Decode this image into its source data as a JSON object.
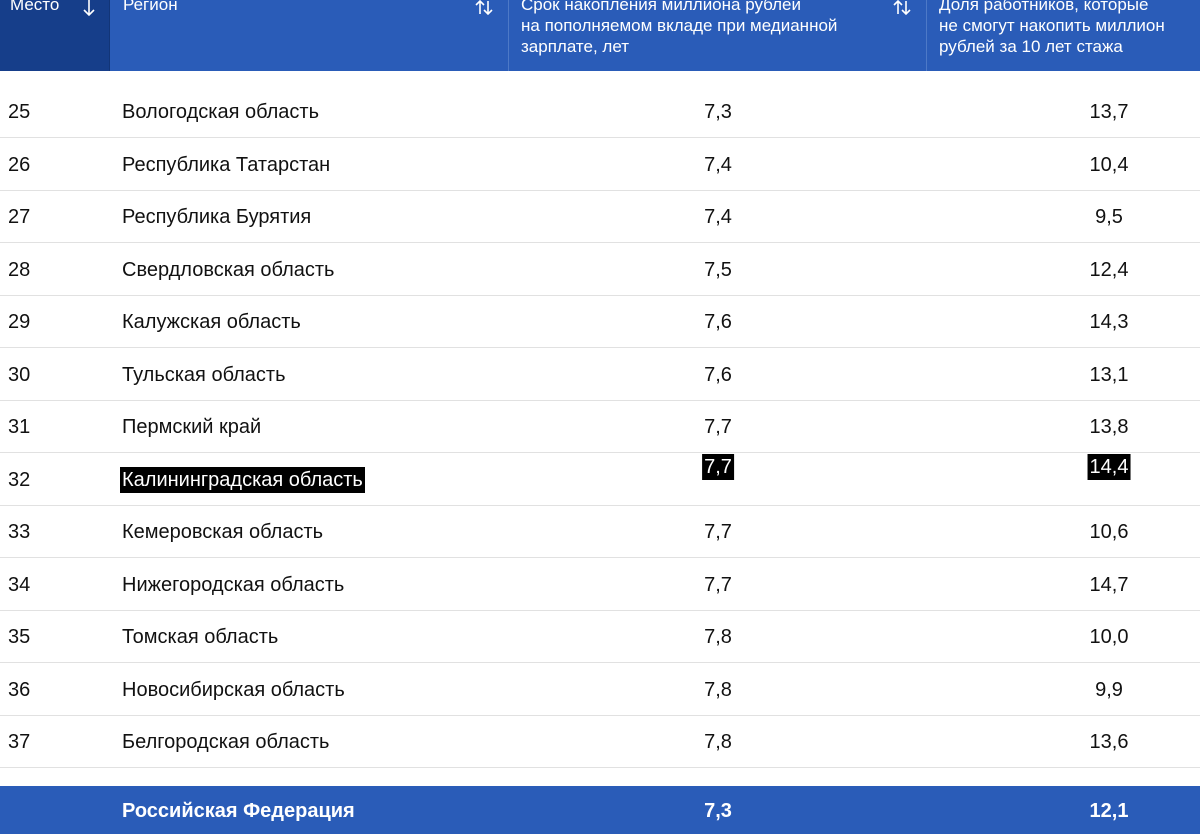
{
  "table": {
    "columns": [
      {
        "label": "Место",
        "sort_icon": "arrow-down-icon"
      },
      {
        "label": "Регион",
        "sort_icon": "sort-up-down-icon"
      },
      {
        "label": "Срок накопления миллиона рублей\nна пополняемом вкладе при медианной\nзарплате, лет",
        "sort_icon": "sort-up-down-icon"
      },
      {
        "label": "Доля работников, которые\nне смогут накопить миллион\nрублей за 10 лет стажа",
        "sort_icon": ""
      }
    ],
    "rows": [
      {
        "place": "25",
        "region": "Вологодская область",
        "term": "7,3",
        "share": "13,7"
      },
      {
        "place": "26",
        "region": "Республика Татарстан",
        "term": "7,4",
        "share": "10,4"
      },
      {
        "place": "27",
        "region": "Республика Бурятия",
        "term": "7,4",
        "share": "9,5"
      },
      {
        "place": "28",
        "region": "Свердловская область",
        "term": "7,5",
        "share": "12,4"
      },
      {
        "place": "29",
        "region": "Калужская область",
        "term": "7,6",
        "share": "14,3"
      },
      {
        "place": "30",
        "region": "Тульская область",
        "term": "7,6",
        "share": "13,1"
      },
      {
        "place": "31",
        "region": "Пермский край",
        "term": "7,7",
        "share": "13,8"
      },
      {
        "place": "32",
        "region": "Калининградская область",
        "term": "7,7",
        "share": "14,4",
        "highlighted": true
      },
      {
        "place": "33",
        "region": "Кемеровская область",
        "term": "7,7",
        "share": "10,6"
      },
      {
        "place": "34",
        "region": "Нижегородская область",
        "term": "7,7",
        "share": "14,7"
      },
      {
        "place": "35",
        "region": "Томская область",
        "term": "7,8",
        "share": "10,0"
      },
      {
        "place": "36",
        "region": "Новосибирская область",
        "term": "7,8",
        "share": "9,9"
      },
      {
        "place": "37",
        "region": "Белгородская область",
        "term": "7,8",
        "share": "13,6"
      }
    ],
    "footer": {
      "region": "Российская Федерация",
      "term": "7,3",
      "share": "12,1"
    },
    "colors": {
      "header_bg": "#2a5cb8",
      "sorted_column_bg": "#163e8a",
      "highlight_bg": "#000000"
    }
  }
}
